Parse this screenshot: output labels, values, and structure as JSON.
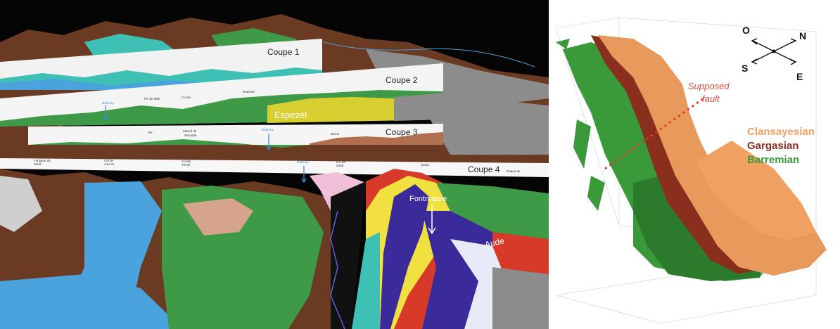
{
  "left_view": {
    "sections": [
      "Coupe 1",
      "Coupe 2",
      "Coupe 3",
      "Coupe 4"
    ],
    "place_labels": {
      "espezel": "Espezel",
      "fontmaure": "Fontmaure",
      "aude": "Aude",
      "dh": "DH",
      "massif": "Massif de",
      "massif2": "Sesvade",
      "belvis": "Belvis",
      "rebenty_1": "Rébenty",
      "rebenty_2": "Rébenty",
      "rebenty_3": "Rébenty",
      "small_1": "Pic de Midi",
      "small_2": "Col de",
      "small_3": "Rodome",
      "small_4": "Fontaine de",
      "small_5": "Sault",
      "small_6": "Col de",
      "small_7": "Joucou",
      "small_8": "Col de",
      "small_9": "Tinnel",
      "small_10": "Col de",
      "small_11": "Sault",
      "small_12": "Gesta",
      "small_13": "Roque de"
    },
    "colors": {
      "brown": "#6b3a22",
      "green": "#3e9a46",
      "sky_blue": "#4aa3dc",
      "teal": "#3fc0b4",
      "grey": "#8c8c8c"
    }
  },
  "right_view": {
    "compass": {
      "o": "O",
      "n": "N",
      "s": "S",
      "e": "E"
    },
    "fault_label": [
      "Supposed",
      "fault"
    ],
    "legend": [
      {
        "label": "Clansayesian",
        "color": "#f0a060"
      },
      {
        "label": "Gargasian",
        "color": "#8a2e1e"
      },
      {
        "label": "Barremian",
        "color": "#3a9a3a"
      }
    ]
  }
}
